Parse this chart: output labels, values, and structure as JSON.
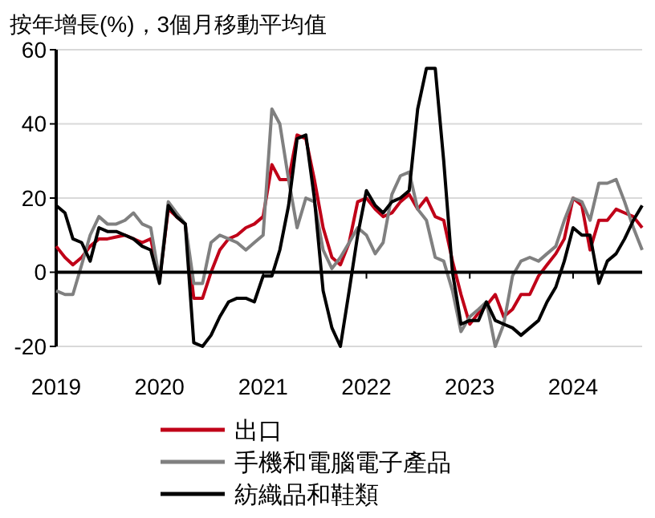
{
  "chart_data": {
    "type": "line",
    "title": "按年增長(%)，3個月移動平均值",
    "x": [
      "2019-01",
      "2019-02",
      "2019-03",
      "2019-04",
      "2019-05",
      "2019-06",
      "2019-07",
      "2019-08",
      "2019-09",
      "2019-10",
      "2019-11",
      "2019-12",
      "2020-01",
      "2020-02",
      "2020-03",
      "2020-04",
      "2020-05",
      "2020-06",
      "2020-07",
      "2020-08",
      "2020-09",
      "2020-10",
      "2020-11",
      "2020-12",
      "2021-01",
      "2021-02",
      "2021-03",
      "2021-04",
      "2021-05",
      "2021-06",
      "2021-07",
      "2021-08",
      "2021-09",
      "2021-10",
      "2021-11",
      "2021-12",
      "2022-01",
      "2022-02",
      "2022-03",
      "2022-04",
      "2022-05",
      "2022-06",
      "2022-07",
      "2022-08",
      "2022-09",
      "2022-10",
      "2022-11",
      "2022-12",
      "2023-01",
      "2023-02",
      "2023-03",
      "2023-04",
      "2023-05",
      "2023-06",
      "2023-07",
      "2023-08",
      "2023-09",
      "2023-10",
      "2023-11",
      "2023-12",
      "2024-01",
      "2024-02",
      "2024-03",
      "2024-04",
      "2024-05",
      "2024-06",
      "2024-07",
      "2024-08",
      "2024-09"
    ],
    "series": [
      {
        "name": "出口",
        "color": "#c00018",
        "values": [
          7,
          4,
          2,
          4,
          7,
          9,
          9,
          9.5,
          10,
          9,
          8,
          9,
          -2,
          17,
          15,
          13,
          -7,
          -7,
          0,
          6,
          9,
          10,
          12,
          13,
          15,
          29,
          25,
          25,
          37,
          36,
          25,
          12,
          4,
          2,
          8,
          19,
          20,
          17,
          15,
          16,
          19,
          21,
          17,
          20,
          15,
          14,
          3,
          -6,
          -14,
          -11,
          -9,
          -6,
          -12,
          -10,
          -6,
          -6,
          -1,
          2,
          5,
          9,
          20,
          18,
          6,
          14,
          14,
          17,
          16,
          15,
          12
        ]
      },
      {
        "name": "手機和電腦電子產品",
        "color": "#808080",
        "values": [
          -5,
          -6,
          -6,
          2,
          10,
          15,
          13,
          13,
          14,
          16,
          13,
          12,
          -2,
          19,
          16,
          13,
          -3,
          -3,
          8,
          10,
          9,
          8,
          6,
          8,
          10,
          44,
          40,
          25,
          12,
          20,
          19,
          6,
          1,
          4,
          8,
          12,
          10,
          5,
          8,
          21,
          26,
          27,
          17,
          14,
          4,
          3,
          -5,
          -16,
          -12,
          -10,
          -8,
          -20,
          -14,
          -1,
          3,
          4,
          3,
          5,
          7,
          14,
          20,
          19,
          14,
          24,
          24,
          25,
          19,
          12,
          6
        ]
      },
      {
        "name": "紡織品和鞋類",
        "color": "#000000",
        "values": [
          18,
          16,
          9,
          8,
          3,
          12,
          11,
          11,
          10,
          9,
          7,
          6,
          -3,
          18,
          15,
          13,
          -19,
          -20,
          -17,
          -12,
          -8,
          -7,
          -7,
          -8,
          -1,
          -1,
          6,
          18,
          36,
          37,
          20,
          -5,
          -15,
          -20,
          -5,
          10,
          22,
          18,
          16,
          19,
          20,
          22,
          44,
          55,
          55,
          30,
          0,
          -14,
          -13,
          -13,
          -8,
          -13,
          -14,
          -15,
          -17,
          -15,
          -13,
          -8,
          -4,
          3,
          12,
          10,
          10,
          -3,
          3,
          5,
          9,
          14,
          18
        ]
      }
    ],
    "xlim": [
      "2019-01",
      "2024-09"
    ],
    "xticks": [
      "2019",
      "2020",
      "2021",
      "2022",
      "2023",
      "2024"
    ],
    "ylim": [
      -20,
      60
    ],
    "yticks": [
      -20,
      0,
      20,
      40,
      60
    ],
    "grid": "y",
    "legend": "bottom",
    "line_style": "solid"
  }
}
